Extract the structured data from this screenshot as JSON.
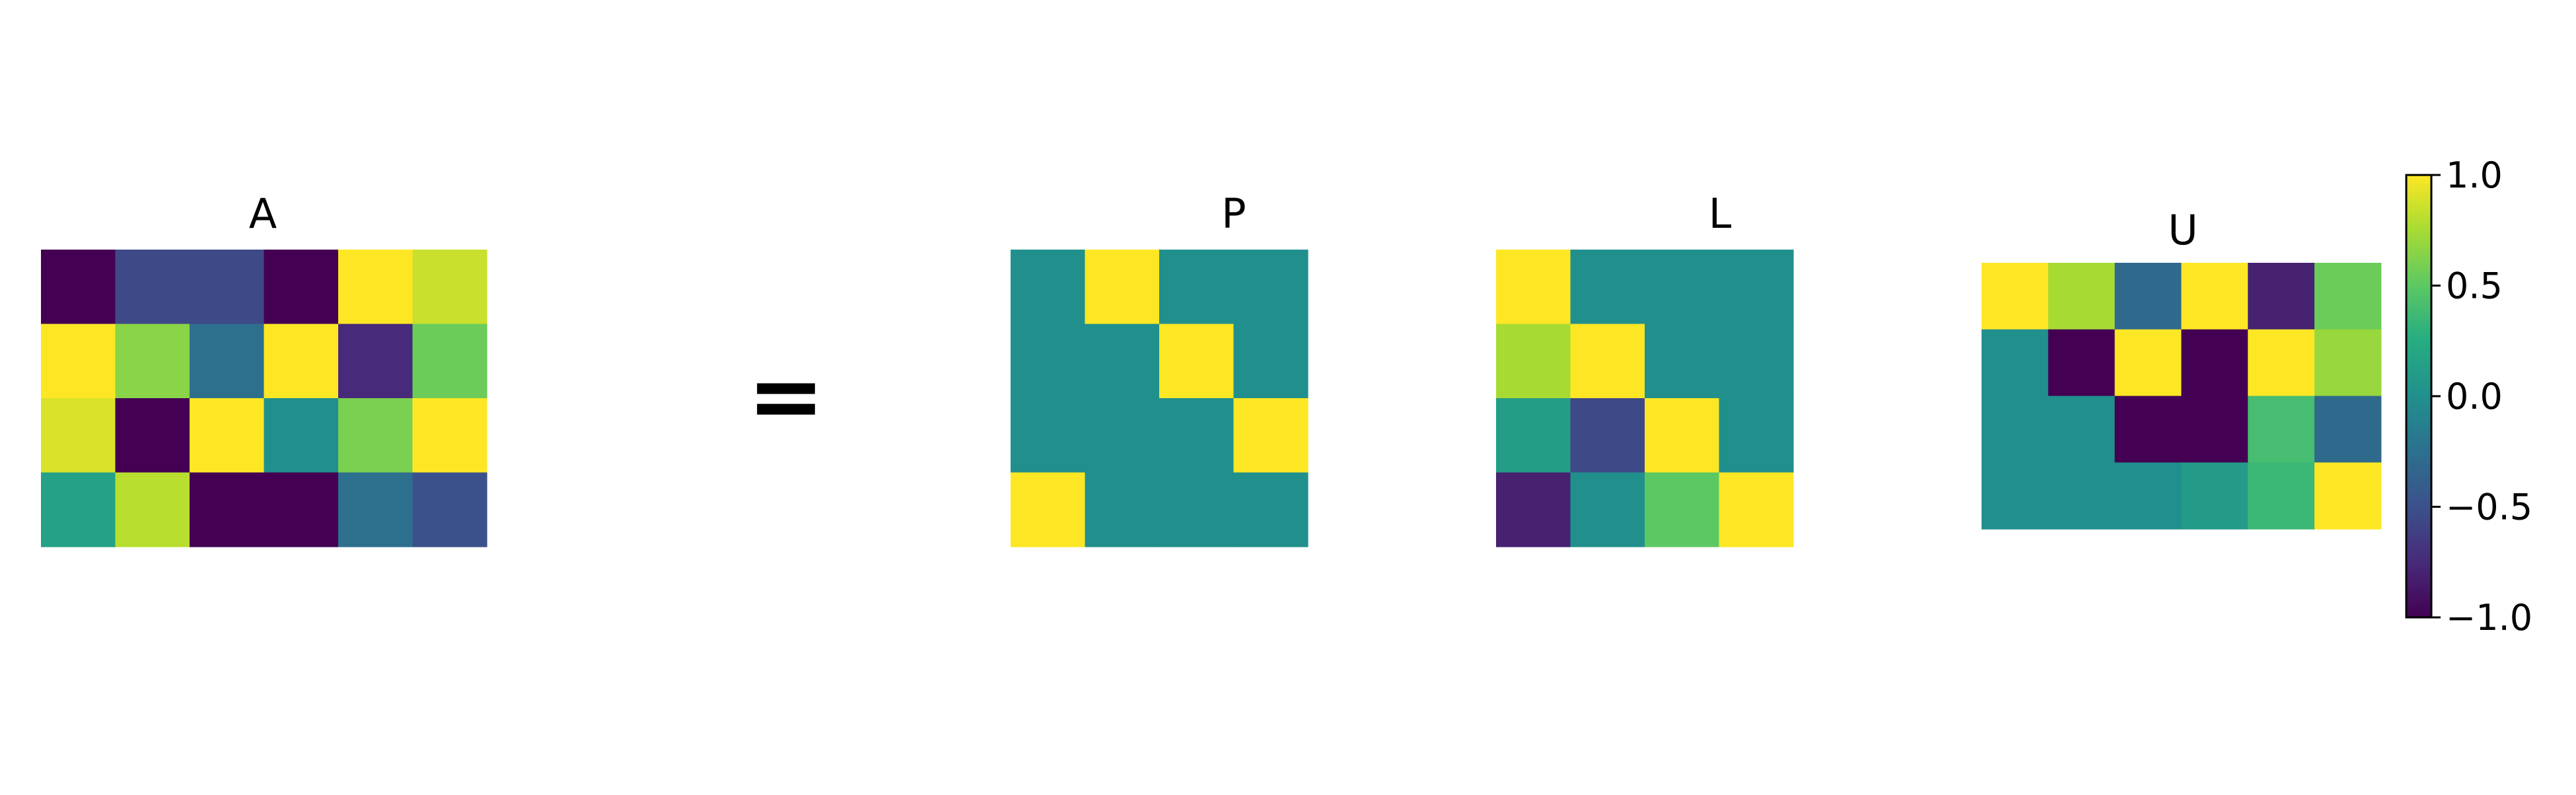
{
  "chart_data": {
    "type": "heatmap",
    "equals_sign": "=",
    "colormap": "viridis",
    "clim": [
      -1.0,
      1.0
    ],
    "panels": [
      {
        "title": "A",
        "rows": 4,
        "cols": 6,
        "values": [
          [
            -1.0,
            -0.55,
            -0.55,
            -1.0,
            1.0,
            0.85
          ],
          [
            1.0,
            0.65,
            -0.25,
            1.0,
            -0.75,
            0.55
          ],
          [
            0.9,
            -1.0,
            1.0,
            0.0,
            0.6,
            1.0
          ],
          [
            0.15,
            0.8,
            -1.0,
            -1.0,
            -0.25,
            -0.5
          ]
        ]
      },
      {
        "title": "P",
        "rows": 4,
        "cols": 4,
        "values": [
          [
            0,
            1,
            0,
            0
          ],
          [
            0,
            0,
            1,
            0
          ],
          [
            0,
            0,
            0,
            1
          ],
          [
            1,
            0,
            0,
            0
          ]
        ]
      },
      {
        "title": "L",
        "rows": 4,
        "cols": 4,
        "values": [
          [
            1.0,
            0,
            0,
            0
          ],
          [
            0.75,
            1.0,
            0,
            0
          ],
          [
            0.12,
            -0.55,
            1.0,
            0
          ],
          [
            -0.8,
            0.0,
            0.5,
            1.0
          ]
        ]
      },
      {
        "title": "U",
        "rows": 4,
        "cols": 6,
        "values": [
          [
            1.0,
            0.75,
            -0.3,
            1.0,
            -0.8,
            0.55
          ],
          [
            0,
            -1.0,
            1.0,
            -1.0,
            1.0,
            0.7
          ],
          [
            0,
            0,
            -1.0,
            -1.0,
            0.4,
            -0.3
          ],
          [
            0,
            0,
            0,
            0.1,
            0.35,
            1.0
          ]
        ]
      }
    ],
    "colorbar": {
      "ticks": [
        1.0,
        0.5,
        0.0,
        -0.5,
        -1.0
      ],
      "tick_labels": [
        "1.0",
        "0.5",
        "0.0",
        "−0.5",
        "−1.0"
      ]
    }
  }
}
